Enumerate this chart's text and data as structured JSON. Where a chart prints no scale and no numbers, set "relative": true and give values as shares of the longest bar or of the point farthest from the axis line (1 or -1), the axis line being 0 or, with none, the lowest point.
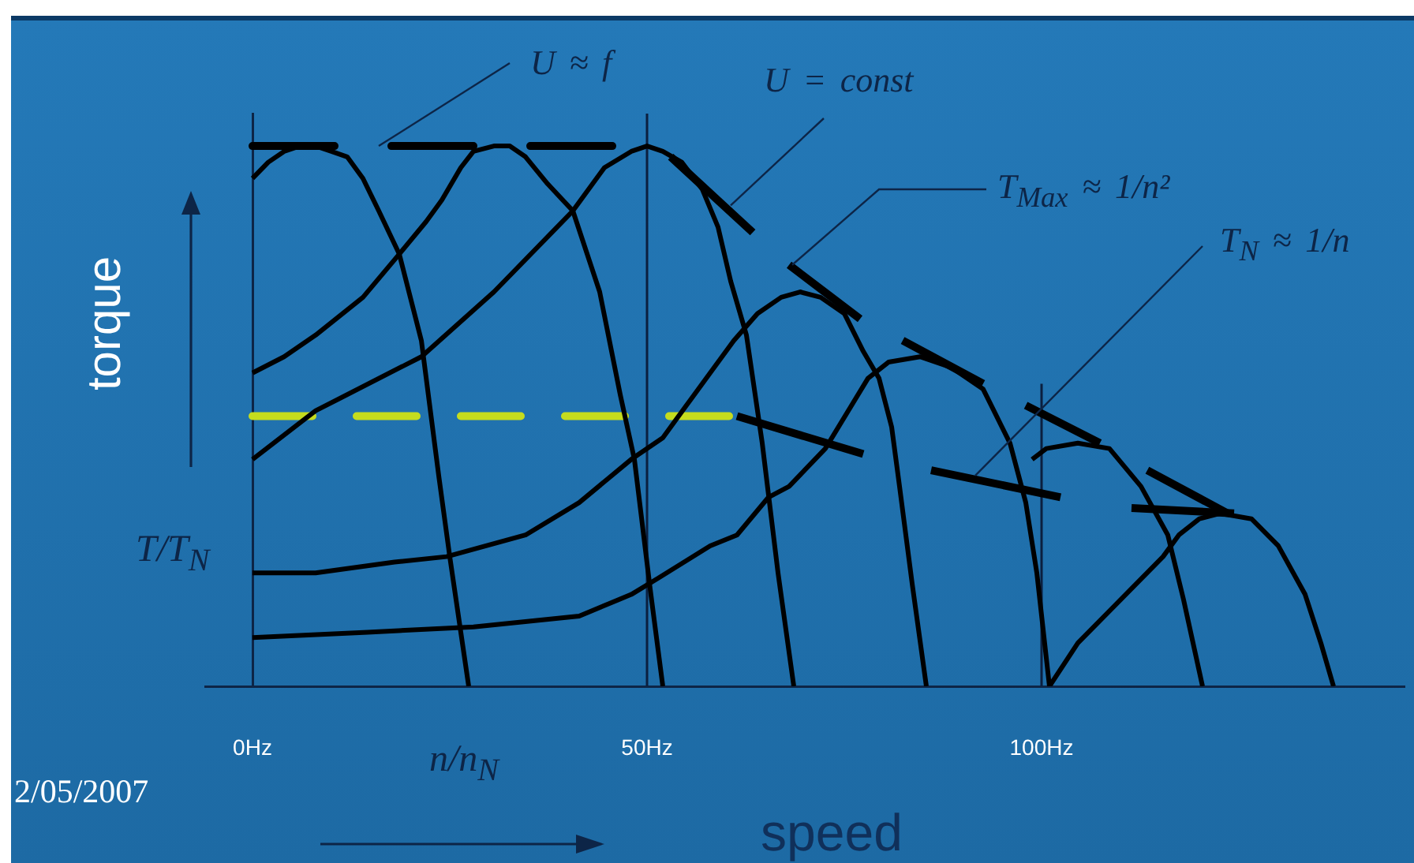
{
  "chart_data": {
    "type": "line",
    "relative": true,
    "xlabel": "speed",
    "ylabel": "torque",
    "xlim": [
      -6,
      146
    ],
    "xticks": [
      {
        "value": 0,
        "label": "0Hz"
      },
      {
        "value": 50,
        "label": "50Hz"
      },
      {
        "value": 100,
        "label": "100Hz"
      }
    ],
    "grid": false,
    "legend": false,
    "marker": "none",
    "ref_lines": [
      {
        "axis": "x",
        "value": 50,
        "color": "#0b1f3f"
      }
    ],
    "annotations": [
      {
        "text": "U ≈ f",
        "x": 16,
        "y": 1
      },
      {
        "text": "U = const",
        "x": 60.6,
        "y": 0.89
      },
      {
        "text": "T$_{Max}$ ≈ 1/n²",
        "x": 68.4,
        "y": 0.78
      },
      {
        "text": "T$_{N}$ ≈ 1/n",
        "x": 91.6,
        "y": 0.39
      },
      "T/T$_{N}$",
      "n/n$_{N}$",
      "2/05/2007"
    ],
    "series": [
      {
        "color": "#000000",
        "x": [
          0,
          2,
          4,
          6,
          8,
          10,
          12,
          14,
          16,
          18.6,
          21.4,
          23.6,
          25,
          26.4,
          27.4
        ],
        "values": [
          0.94,
          0.97,
          0.99,
          1,
          1,
          0.99,
          0.98,
          0.94,
          0.88,
          0.8,
          0.64,
          0.39,
          0.24,
          0.1,
          0
        ]
      },
      {
        "color": "#000000",
        "x": [
          0,
          4,
          8,
          14,
          18.6,
          22,
          24,
          26.4,
          28,
          30.6,
          32.6,
          34.6,
          37.4,
          40.6,
          44,
          46.6,
          48.4,
          50.4,
          52
        ],
        "values": [
          0.58,
          0.61,
          0.65,
          0.72,
          0.8,
          0.86,
          0.9,
          0.96,
          0.99,
          1,
          1,
          0.98,
          0.93,
          0.88,
          0.73,
          0.54,
          0.42,
          0.18,
          0
        ]
      },
      {
        "color": "#000000",
        "x": [
          0,
          8,
          21.4,
          30.6,
          40.6,
          44.6,
          48,
          50,
          52,
          54.4,
          57,
          59,
          60.6,
          62.6,
          64.6,
          66.6,
          68.6
        ],
        "values": [
          0.42,
          0.51,
          0.61,
          0.73,
          0.88,
          0.96,
          0.99,
          1,
          0.99,
          0.97,
          0.92,
          0.85,
          0.75,
          0.65,
          0.45,
          0.21,
          0
        ]
      },
      {
        "color": "#000000",
        "x": [
          0,
          8,
          18,
          24.6,
          34.6,
          41.4,
          48,
          52,
          55,
          58,
          61,
          64,
          67,
          69.4,
          72,
          75,
          77.4,
          79.4,
          81,
          82,
          83.6,
          85.4
        ],
        "values": [
          0.21,
          0.21,
          0.23,
          0.24,
          0.28,
          0.34,
          0.42,
          0.46,
          0.52,
          0.58,
          0.64,
          0.69,
          0.72,
          0.73,
          0.72,
          0.69,
          0.62,
          0.57,
          0.48,
          0.37,
          0.19,
          0
        ]
      },
      {
        "color": "#000000",
        "x": [
          0,
          14.6,
          28,
          41.4,
          48,
          51.4,
          58,
          61.4,
          65.4,
          68,
          72.6,
          78,
          80.6,
          84.6,
          88.6,
          92.6,
          96,
          98,
          99.4,
          101
        ],
        "values": [
          0.09,
          0.1,
          0.11,
          0.13,
          0.17,
          0.2,
          0.26,
          0.28,
          0.35,
          0.37,
          0.44,
          0.57,
          0.6,
          0.61,
          0.59,
          0.55,
          0.45,
          0.34,
          0.21,
          0
        ]
      },
      {
        "color": "#000000",
        "x": [
          98.8,
          100.6,
          104.6,
          108.6,
          112.6,
          116,
          118,
          120.4
        ],
        "values": [
          0.42,
          0.44,
          0.45,
          0.44,
          0.37,
          0.28,
          0.16,
          0
        ]
      },
      {
        "color": "#000000",
        "x": [
          101,
          104.6,
          110,
          115.4,
          117.4,
          120,
          122.6,
          126.6,
          130,
          133.4,
          135.4,
          137
        ],
        "values": [
          0,
          0.08,
          0.16,
          0.24,
          0.28,
          0.31,
          0.32,
          0.31,
          0.26,
          0.17,
          0.08,
          0
        ]
      },
      {
        "color": "#000000",
        "line_style": "dashed",
        "x": [
          0,
          47.4
        ],
        "values": [
          1,
          1
        ]
      },
      {
        "color": "#c5dc1e",
        "line_style": "dashed",
        "x": [
          0,
          61.4
        ],
        "values": [
          0.5,
          0.5
        ]
      },
      {
        "color": "#000000",
        "x": [
          53,
          63.4,
          65.7,
          68,
          77,
          79.7,
          82.4,
          92.6,
          95.3,
          98,
          107.4,
          110.4,
          113.4,
          123.6
        ],
        "values": [
          0.98,
          0.84,
          null,
          0.78,
          0.68,
          null,
          0.64,
          0.56,
          null,
          0.52,
          0.45,
          null,
          0.4,
          0.32
        ]
      },
      {
        "color": "#000000",
        "x": [
          61.4,
          77.4,
          81.7,
          86,
          102.4,
          106.9,
          111.4,
          124.4
        ],
        "values": [
          0.5,
          0.43,
          null,
          0.4,
          0.35,
          null,
          0.33,
          0.32
        ]
      },
      {
        "color": "#0b1f3f",
        "x": [
          100,
          100
        ],
        "values": [
          0,
          0.56
        ]
      }
    ]
  }
}
